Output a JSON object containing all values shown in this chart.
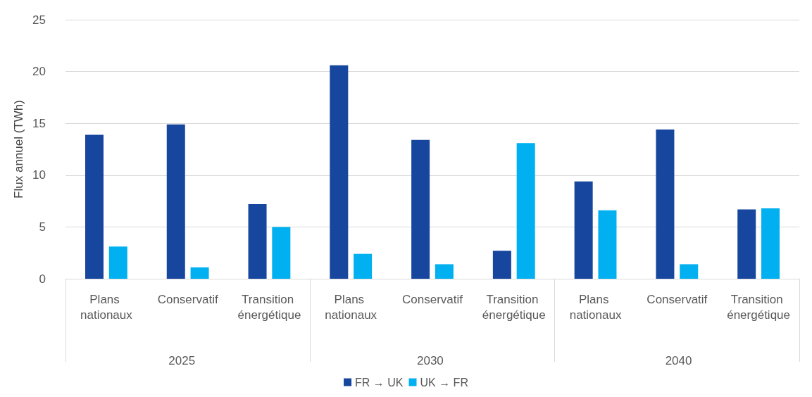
{
  "chart_data": {
    "type": "bar",
    "ylabel": "Flux annuel (TWh)",
    "categories": [
      "Plans nationaux",
      "Conservatif",
      "Transition énergétique",
      "Plans nationaux",
      "Conservatif",
      "Transition énergétique",
      "Plans nationaux",
      "Conservatif",
      "Transition énergétique"
    ],
    "series": [
      {
        "name": "FR → UK",
        "color": "#17469e",
        "values": [
          13.9,
          14.9,
          7.2,
          20.6,
          13.4,
          2.7,
          9.4,
          14.4,
          6.7
        ]
      },
      {
        "name": "UK → FR",
        "color": "#00b0f0",
        "values": [
          3.1,
          1.1,
          5.0,
          2.4,
          1.4,
          13.1,
          6.6,
          1.4,
          6.8
        ]
      }
    ],
    "annotations": [
      "2025",
      "2030",
      "2040"
    ],
    "ylim": [
      0,
      25
    ],
    "yticks": [
      0,
      5,
      10,
      15,
      20,
      25
    ],
    "grid": "y",
    "legend": "bottom"
  }
}
